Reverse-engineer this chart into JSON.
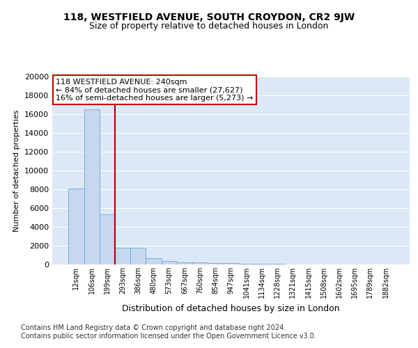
{
  "title": "118, WESTFIELD AVENUE, SOUTH CROYDON, CR2 9JW",
  "subtitle": "Size of property relative to detached houses in London",
  "xlabel": "Distribution of detached houses by size in London",
  "ylabel": "Number of detached properties",
  "categories": [
    "12sqm",
    "106sqm",
    "199sqm",
    "293sqm",
    "386sqm",
    "480sqm",
    "573sqm",
    "667sqm",
    "760sqm",
    "854sqm",
    "947sqm",
    "1041sqm",
    "1134sqm",
    "1228sqm",
    "1321sqm",
    "1415sqm",
    "1508sqm",
    "1602sqm",
    "1695sqm",
    "1789sqm",
    "1882sqm"
  ],
  "values": [
    8100,
    16500,
    5300,
    1800,
    1800,
    700,
    350,
    250,
    200,
    175,
    150,
    100,
    75,
    50,
    30,
    20,
    15,
    10,
    8,
    5,
    3
  ],
  "bar_color": "#c5d8f0",
  "bar_edge_color": "#6aaad4",
  "bg_color": "#dce8f5",
  "vline_x": 2.5,
  "vline_color": "#aa0000",
  "annotation_text": "118 WESTFIELD AVENUE: 240sqm\n← 84% of detached houses are smaller (27,627)\n16% of semi-detached houses are larger (5,273) →",
  "annotation_box_color": "#ffffff",
  "annotation_box_edge": "#cc0000",
  "footer": "Contains HM Land Registry data © Crown copyright and database right 2024.\nContains public sector information licensed under the Open Government Licence v3.0.",
  "ylim": [
    0,
    20000
  ],
  "yticks": [
    0,
    2000,
    4000,
    6000,
    8000,
    10000,
    12000,
    14000,
    16000,
    18000,
    20000
  ],
  "title_fontsize": 10,
  "subtitle_fontsize": 9,
  "ylabel_fontsize": 8,
  "xlabel_fontsize": 9,
  "tick_fontsize": 8,
  "xtick_fontsize": 7,
  "footer_fontsize": 7,
  "annot_fontsize": 8
}
